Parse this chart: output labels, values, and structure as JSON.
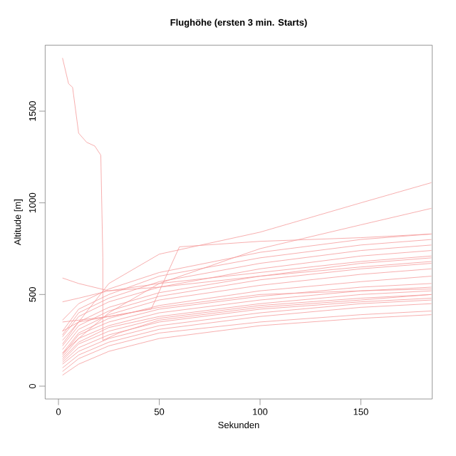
{
  "chart_data": {
    "type": "line",
    "title": "Flughöhe (ersten 3 min. Starts)",
    "xlabel": "Sekunden",
    "ylabel": "Altitude [m]",
    "x": [
      2,
      10,
      25,
      50,
      100,
      150,
      185
    ],
    "xlim": [
      -6.6,
      185.4
    ],
    "ylim": [
      -70,
      1860
    ],
    "xticks": [
      0,
      50,
      100,
      150
    ],
    "yticks": [
      0,
      500,
      1000,
      1500
    ],
    "grid": false,
    "marker": "none",
    "line_style": "solid",
    "series": [
      {
        "color": "#f59a9a",
        "values": [
          60,
          120,
          190,
          260,
          330,
          370,
          390
        ]
      },
      {
        "color": "#f59a9a",
        "values": [
          80,
          150,
          220,
          290,
          350,
          390,
          410
        ]
      },
      {
        "color": "#f59a9a",
        "values": [
          100,
          170,
          240,
          310,
          380,
          430,
          450
        ]
      },
      {
        "color": "#f59a9a",
        "values": [
          120,
          190,
          260,
          330,
          400,
          450,
          470
        ]
      },
      {
        "color": "#f59a9a",
        "values": [
          130,
          210,
          280,
          350,
          420,
          460,
          480
        ]
      },
      {
        "color": "#f59a9a",
        "values": [
          140,
          230,
          300,
          370,
          440,
          480,
          500
        ]
      },
      {
        "color": "#f59a9a",
        "values": [
          150,
          240,
          320,
          380,
          450,
          500,
          520
        ]
      },
      {
        "color": "#f59a9a",
        "values": [
          160,
          260,
          330,
          400,
          470,
          520,
          540
        ]
      },
      {
        "color": "#f59a9a",
        "values": [
          170,
          280,
          350,
          420,
          490,
          540,
          560
        ]
      },
      {
        "color": "#f59a9a",
        "values": [
          180,
          290,
          370,
          440,
          520,
          570,
          600
        ]
      },
      {
        "color": "#f59a9a",
        "values": [
          200,
          310,
          390,
          470,
          550,
          610,
          640
        ]
      },
      {
        "color": "#f59a9a",
        "values": [
          220,
          330,
          410,
          490,
          580,
          640,
          670
        ]
      },
      {
        "color": "#f59a9a",
        "values": [
          250,
          350,
          430,
          510,
          600,
          670,
          700
        ]
      },
      {
        "color": "#f59a9a",
        "values": [
          270,
          380,
          460,
          540,
          640,
          710,
          740
        ]
      },
      {
        "color": "#f59a9a",
        "values": [
          280,
          400,
          480,
          570,
          670,
          740,
          770
        ]
      },
      {
        "color": "#f59a9a",
        "values": [
          300,
          420,
          500,
          600,
          700,
          770,
          800
        ]
      },
      {
        "color": "#f59a9a",
        "values": [
          360,
          450,
          530,
          620,
          730,
          800,
          830
        ]
      },
      {
        "color": "#f59a9a",
        "values": [
          460,
          480,
          520,
          560,
          620,
          680,
          710
        ]
      },
      {
        "color": "#f59a9a",
        "values": [
          590,
          560,
          520,
          540,
          600,
          650,
          680
        ]
      },
      {
        "color": "#f59a9a",
        "values": [
          350,
          360,
          380,
          430,
          500,
          520,
          530
        ]
      },
      {
        "color": "#f59a9a",
        "values": [
          230,
          350,
          560,
          720,
          840,
          1000,
          1110
        ]
      },
      {
        "color": "#f59a9a",
        "values": [
          180,
          260,
          400,
          560,
          750,
          880,
          970
        ]
      },
      {
        "color": "#f59a9a",
        "x": [
          2,
          10,
          25,
          46,
          60,
          100,
          150,
          185
        ],
        "values": [
          300,
          350,
          380,
          420,
          760,
          790,
          810,
          830
        ]
      },
      {
        "color": "#f59a9a",
        "x": [
          2,
          5,
          7,
          10,
          14,
          18,
          21,
          22,
          22,
          30,
          50,
          100,
          150,
          185
        ],
        "values": [
          1790,
          1650,
          1630,
          1380,
          1330,
          1310,
          1260,
          700,
          250,
          290,
          360,
          430,
          470,
          500
        ]
      }
    ]
  }
}
